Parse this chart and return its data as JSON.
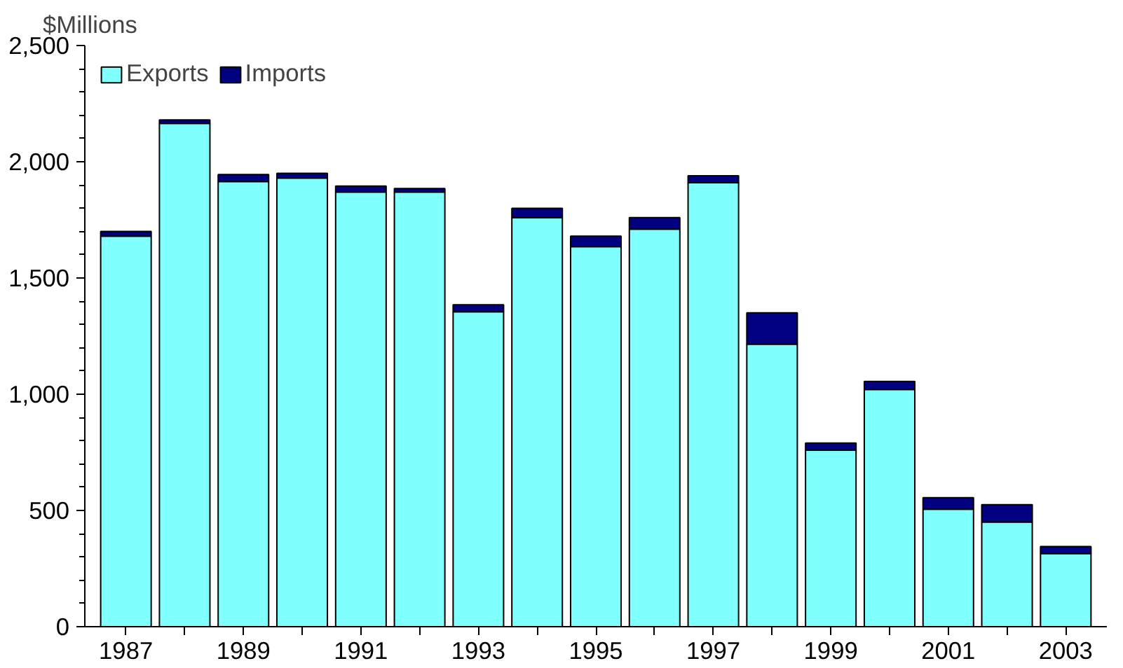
{
  "chart_data": {
    "type": "bar",
    "stacked": true,
    "ylabel": "$Millions",
    "x": [
      1987,
      1988,
      1989,
      1990,
      1991,
      1992,
      1993,
      1994,
      1995,
      1996,
      1997,
      1998,
      1999,
      2000,
      2001,
      2002,
      2003
    ],
    "series": [
      {
        "name": "Exports",
        "color": "#80ffff",
        "values": [
          1680,
          2165,
          1915,
          1930,
          1870,
          1870,
          1355,
          1760,
          1635,
          1710,
          1910,
          1215,
          760,
          1020,
          505,
          450,
          315
        ]
      },
      {
        "name": "Imports",
        "color": "#000080",
        "values": [
          20,
          15,
          30,
          20,
          25,
          15,
          30,
          40,
          45,
          50,
          30,
          135,
          30,
          35,
          50,
          75,
          30
        ]
      }
    ],
    "xlim": [
      1986.3,
      2003.7
    ],
    "xticks": [
      1987,
      {
        "value": 1988,
        "label": null
      },
      1989,
      {
        "value": 1990,
        "label": null
      },
      1991,
      {
        "value": 1992,
        "label": null
      },
      1993,
      {
        "value": 1994,
        "label": null
      },
      1995,
      {
        "value": 1996,
        "label": null
      },
      1997,
      {
        "value": 1998,
        "label": null
      },
      1999,
      {
        "value": 2000,
        "label": null
      },
      2001,
      {
        "value": 2002,
        "label": null
      },
      2003
    ],
    "ylim": [
      0,
      2500
    ],
    "yticks": [
      0,
      500,
      {
        "value": 1000,
        "label": "1,000"
      },
      {
        "value": 1500,
        "label": "1,500"
      },
      {
        "value": 2000,
        "label": "2,000"
      },
      {
        "value": 2500,
        "label": "2,500"
      }
    ],
    "grid": false,
    "legend": "top left"
  }
}
